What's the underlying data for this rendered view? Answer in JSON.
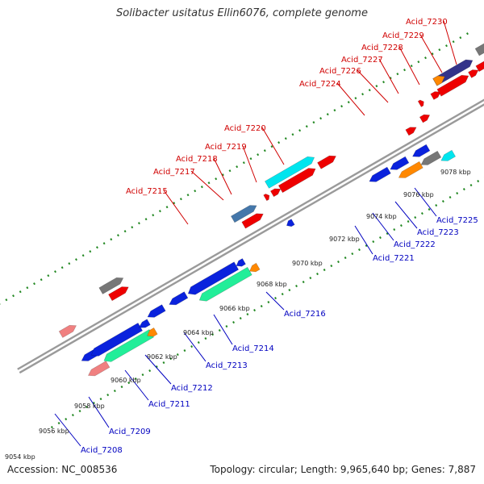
{
  "title": "Solibacter usitatus Ellin6076, complete genome",
  "footer": {
    "accession_label": "Accession:",
    "accession": "NC_008536",
    "topology_text": "Topology: circular; Length: 9,965,640 bp; Genes: 7,887"
  },
  "colors": {
    "forward_label": "#d00000",
    "reverse_label": "#0000c0",
    "backbone": "#888888",
    "tick_dots": "#228822",
    "red_gene": "#ee0000",
    "blue_gene": "#0a22dd",
    "cyan_gene": "#00e5ee",
    "mint_gene": "#22ee99",
    "orange_gene": "#ff8800",
    "gray_gene": "#777777",
    "steelblue_gene": "#4477aa",
    "navy_gene": "#33338a",
    "pink_gene": "#f08080"
  },
  "kbp_scale": [
    "9054 kbp",
    "9056 kbp",
    "9058 kbp",
    "9060 kbp",
    "9062 kbp",
    "9064 kbp",
    "9066 kbp",
    "9068 kbp",
    "9070 kbp",
    "9072 kbp",
    "9074 kbp",
    "9076 kbp",
    "9078 kbp"
  ],
  "forward_genes": [
    "Acid_7215",
    "Acid_7217",
    "Acid_7218",
    "Acid_7219",
    "Acid_7220",
    "Acid_7224",
    "Acid_7226",
    "Acid_7227",
    "Acid_7228",
    "Acid_7229",
    "Acid_7230"
  ],
  "reverse_genes": [
    "Acid_7208",
    "Acid_7209",
    "Acid_7211",
    "Acid_7212",
    "Acid_7213",
    "Acid_7214",
    "Acid_7216",
    "Acid_7221",
    "Acid_7222",
    "Acid_7223",
    "Acid_7225"
  ]
}
